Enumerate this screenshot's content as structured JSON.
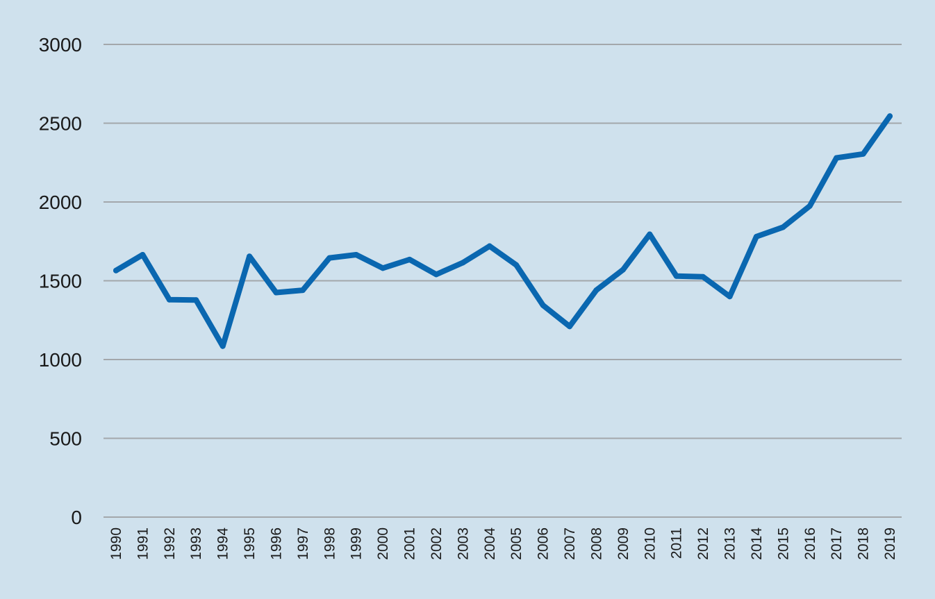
{
  "chart_data": {
    "type": "line",
    "title": "",
    "xlabel": "",
    "ylabel": "",
    "ylim": [
      0,
      3000
    ],
    "yticks": [
      "0",
      "500",
      "1000",
      "1500",
      "2000",
      "2500",
      "3000"
    ],
    "grid": true,
    "legend": "none",
    "x": [
      "1990",
      "1991",
      "1992",
      "1993",
      "1994",
      "1995",
      "1996",
      "1997",
      "1998",
      "1999",
      "2000",
      "2001",
      "2002",
      "2003",
      "2004",
      "2005",
      "2006",
      "2007",
      "2008",
      "2009",
      "2010",
      "2011",
      "2012",
      "2013",
      "2014",
      "2015",
      "2016",
      "2017",
      "2018",
      "2019"
    ],
    "series": [
      {
        "color": "#0a67b0",
        "values": [
          1565,
          1665,
          1380,
          1378,
          1085,
          1655,
          1425,
          1440,
          1645,
          1665,
          1580,
          1635,
          1540,
          1615,
          1720,
          1600,
          1345,
          1210,
          1440,
          1570,
          1795,
          1530,
          1525,
          1400,
          1780,
          1840,
          1975,
          2280,
          2305,
          2545
        ]
      }
    ]
  }
}
